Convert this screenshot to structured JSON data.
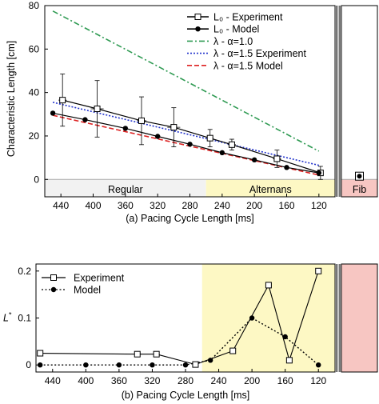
{
  "chart_data": [
    {
      "type": "line",
      "xlabel": "(a) Pacing Cycle Length [ms]",
      "ylabel": "Characteristic Length [cm]",
      "ylim": [
        -8,
        80
      ],
      "xlim": [
        460,
        100
      ],
      "x_ticks": [
        440,
        400,
        360,
        320,
        280,
        240,
        200,
        160,
        120
      ],
      "y_ticks": [
        0,
        20,
        40,
        60,
        80
      ],
      "grid": false,
      "legend_position": "top-right",
      "regions": [
        {
          "label": "Regular",
          "from": 460,
          "to": 260,
          "color": "#f2f2f2"
        },
        {
          "label": "Alternans",
          "from": 260,
          "to": 110,
          "color": "#fdf8c4"
        },
        {
          "label": "Fib",
          "color": "#f7c6c2"
        }
      ],
      "series": [
        {
          "name": "$L_0$ - Experiment",
          "legend_text": "L₀ - Experiment",
          "style": "square-solid",
          "color": "#000000",
          "x": [
            438,
            395,
            340,
            300,
            255,
            228,
            172,
            118
          ],
          "y": [
            36.5,
            32.5,
            27,
            24,
            19,
            16,
            9.5,
            3
          ],
          "yerr": [
            12,
            13,
            11,
            9,
            4,
            2.5,
            4,
            3
          ],
          "xerr": [
            5,
            8,
            6,
            8,
            4,
            5,
            5,
            3
          ]
        },
        {
          "name": "$L_0$ - Model",
          "legend_text": "L₀ - Model",
          "style": "circle-solid",
          "color": "#000000",
          "x": [
            450,
            410,
            360,
            320,
            280,
            240,
            200,
            160,
            120
          ],
          "y": [
            30.5,
            27.5,
            23.5,
            19.8,
            16.2,
            12.3,
            9,
            5.5,
            3
          ]
        },
        {
          "name": "λ - α=1.0",
          "style": "dashdot",
          "color": "#2e9a52",
          "x": [
            450,
            120
          ],
          "y": [
            77.5,
            13
          ]
        },
        {
          "name": "λ - α=1.5 Experiment",
          "style": "dotted",
          "color": "#2233cc",
          "x": [
            450,
            120
          ],
          "y": [
            35.5,
            6.5
          ]
        },
        {
          "name": "λ - α=1.5 Model",
          "style": "dashed",
          "color": "#dd2222",
          "x": [
            450,
            120
          ],
          "y": [
            29.5,
            2
          ]
        }
      ],
      "fib_point": {
        "y": 1.5,
        "yerr": 1.5
      }
    },
    {
      "type": "line",
      "xlabel": "(b) Pacing Cycle Length [ms]",
      "ylabel": "L*",
      "ylim": [
        -0.015,
        0.215
      ],
      "xlim": [
        460,
        100
      ],
      "x_ticks": [
        440,
        400,
        360,
        320,
        280,
        240,
        200,
        160,
        120
      ],
      "y_ticks": [
        0,
        0.1,
        0.2
      ],
      "y_tick_labels": [
        "0",
        "0.1",
        "0.2"
      ],
      "grid": false,
      "legend_position": "top-left",
      "series": [
        {
          "name": "Experiment",
          "style": "square-solid",
          "color": "#000000",
          "x": [
            455,
            338,
            315,
            268,
            223,
            180,
            155,
            120
          ],
          "y": [
            0.025,
            0.023,
            0.023,
            0.001,
            0.03,
            0.17,
            0.01,
            0.2
          ]
        },
        {
          "name": "Model",
          "style": "circle-dotted",
          "color": "#000000",
          "x": [
            455,
            400,
            360,
            320,
            280,
            250,
            200,
            160,
            120
          ],
          "y": [
            0,
            0,
            0,
            0,
            0,
            0.01,
            0.1,
            0.06,
            0
          ]
        }
      ]
    }
  ]
}
